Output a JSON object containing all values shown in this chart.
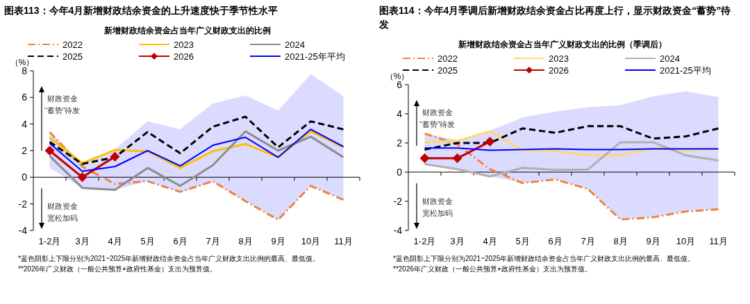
{
  "chart_data": [
    {
      "type": "line",
      "title": "图表113：今年4月新增财政结余资金的上升速度快于季节性水平",
      "subtitle": "新增财政结余资金占当年广义财政支出的比例",
      "ylabel": "（%）",
      "categories": [
        "1-2月",
        "3月",
        "4月",
        "5月",
        "6月",
        "7月",
        "8月",
        "9月",
        "10月",
        "11月"
      ],
      "ylim": [
        -4,
        8
      ],
      "yticks": [
        -4,
        -2,
        0,
        2,
        4,
        6,
        8
      ],
      "legend": "top",
      "series": [
        {
          "name": "2022",
          "color": "#f0833a",
          "line_style": "dashdot",
          "values": [
            3.4,
            0.8,
            -0.5,
            -0.3,
            -1.1,
            -0.3,
            -1.8,
            -3.2,
            -0.65,
            -1.7
          ]
        },
        {
          "name": "2023",
          "color": "#ffc000",
          "line_style": "solid",
          "values": [
            3.0,
            1.05,
            2.05,
            1.95,
            0.7,
            1.95,
            2.5,
            1.5,
            3.45,
            2.25
          ]
        },
        {
          "name": "2024",
          "color": "#8c8c8c",
          "line_style": "solid",
          "values": [
            1.6,
            -0.8,
            -0.95,
            0.7,
            -0.65,
            0.9,
            3.45,
            2.0,
            3.05,
            1.5
          ]
        },
        {
          "name": "2025",
          "color": "#000000",
          "line_style": "dashed",
          "values": [
            2.65,
            1.0,
            1.5,
            3.4,
            1.8,
            3.8,
            4.55,
            2.25,
            4.2,
            3.6
          ]
        },
        {
          "name": "2026",
          "color": "#c00000",
          "line_style": "solid",
          "marker": "diamond",
          "values": [
            2.0,
            0.0,
            1.55,
            null,
            null,
            null,
            null,
            null,
            null,
            null
          ]
        },
        {
          "name": "2021-25年平均",
          "color": "#0000ff",
          "line_style": "solid",
          "values": [
            2.55,
            0.45,
            0.8,
            2.0,
            0.85,
            2.4,
            3.0,
            1.5,
            3.6,
            2.3
          ],
          "lower": [
            0.7,
            -0.8,
            -0.95,
            -0.3,
            -1.15,
            -0.35,
            -1.8,
            -3.2,
            -0.65,
            -1.7
          ],
          "upper": [
            3.4,
            1.1,
            2.1,
            4.2,
            3.6,
            5.55,
            6.15,
            5.0,
            7.75,
            6.1
          ]
        }
      ],
      "annotations": [
        "财政资金",
        "“蓄势”待发",
        "财政资金",
        "宽松加码",
        "*蓝色阴影上下限分别为2021~2025年新增财政结余资金占当年广义财政支出比例的最高、最低值。",
        "**2026年广义财政（一般公共预算+政府性基金）支出为预算值。"
      ]
    },
    {
      "type": "line",
      "title": "图表114：今年4月季调后新增财政结余资金占比再度上行，显示财政资金“蓄势”待发",
      "subtitle": "新增财政结余资金占当年广义财政支出的比例（季调后）",
      "ylabel": "（%）",
      "categories": [
        "1-2月",
        "3月",
        "4月",
        "5月",
        "6月",
        "7月",
        "8月",
        "9月",
        "10月",
        "11月"
      ],
      "ylim": [
        -4,
        6
      ],
      "yticks": [
        -4,
        -2,
        0,
        2,
        4,
        6
      ],
      "legend": "top",
      "series": [
        {
          "name": "2022",
          "color": "#f0833a",
          "line_style": "dashdot",
          "values": [
            2.65,
            1.9,
            0.2,
            -0.75,
            -0.5,
            -1.15,
            -3.25,
            -3.1,
            -2.7,
            -2.55
          ]
        },
        {
          "name": "2023",
          "color": "#ffd966",
          "line_style": "solid",
          "values": [
            2.05,
            2.15,
            2.8,
            1.5,
            1.45,
            1.15,
            1.15,
            1.65,
            1.5,
            1.6
          ]
        },
        {
          "name": "2024",
          "color": "#b0b0b0",
          "line_style": "solid",
          "values": [
            0.55,
            0.2,
            -0.3,
            0.3,
            0.15,
            0.18,
            2.05,
            2.05,
            1.15,
            0.8
          ]
        },
        {
          "name": "2025",
          "color": "#000000",
          "line_style": "dashed",
          "values": [
            1.55,
            2.0,
            2.0,
            3.0,
            2.7,
            3.15,
            3.15,
            2.3,
            2.45,
            3.0
          ]
        },
        {
          "name": "2026",
          "color": "#c00000",
          "line_style": "solid",
          "marker": "diamond",
          "values": [
            0.95,
            0.95,
            2.1,
            null,
            null,
            null,
            null,
            null,
            null,
            null
          ]
        },
        {
          "name": "2021-25平均",
          "color": "#0000ff",
          "line_style": "solid",
          "values": [
            1.65,
            1.65,
            1.5,
            1.55,
            1.6,
            1.55,
            1.55,
            1.6,
            1.6,
            1.6
          ],
          "lower": [
            0.55,
            0.2,
            -0.3,
            -0.75,
            -0.5,
            -1.15,
            -3.25,
            -3.1,
            -2.7,
            -2.55
          ],
          "upper": [
            2.65,
            2.2,
            2.85,
            3.75,
            4.15,
            4.45,
            4.6,
            5.2,
            5.55,
            5.15
          ]
        }
      ],
      "annotations": [
        "财政资金",
        "“蓄势”待发",
        "财政资金",
        "宽松加码",
        "*蓝色阴影上下限分别为2021~2025年新增财政结余资金占当年广义财政支出比例的最高、最低值。",
        "**2026年广义财政（一般公共预算+政府性基金）支出为预算值。"
      ]
    }
  ]
}
